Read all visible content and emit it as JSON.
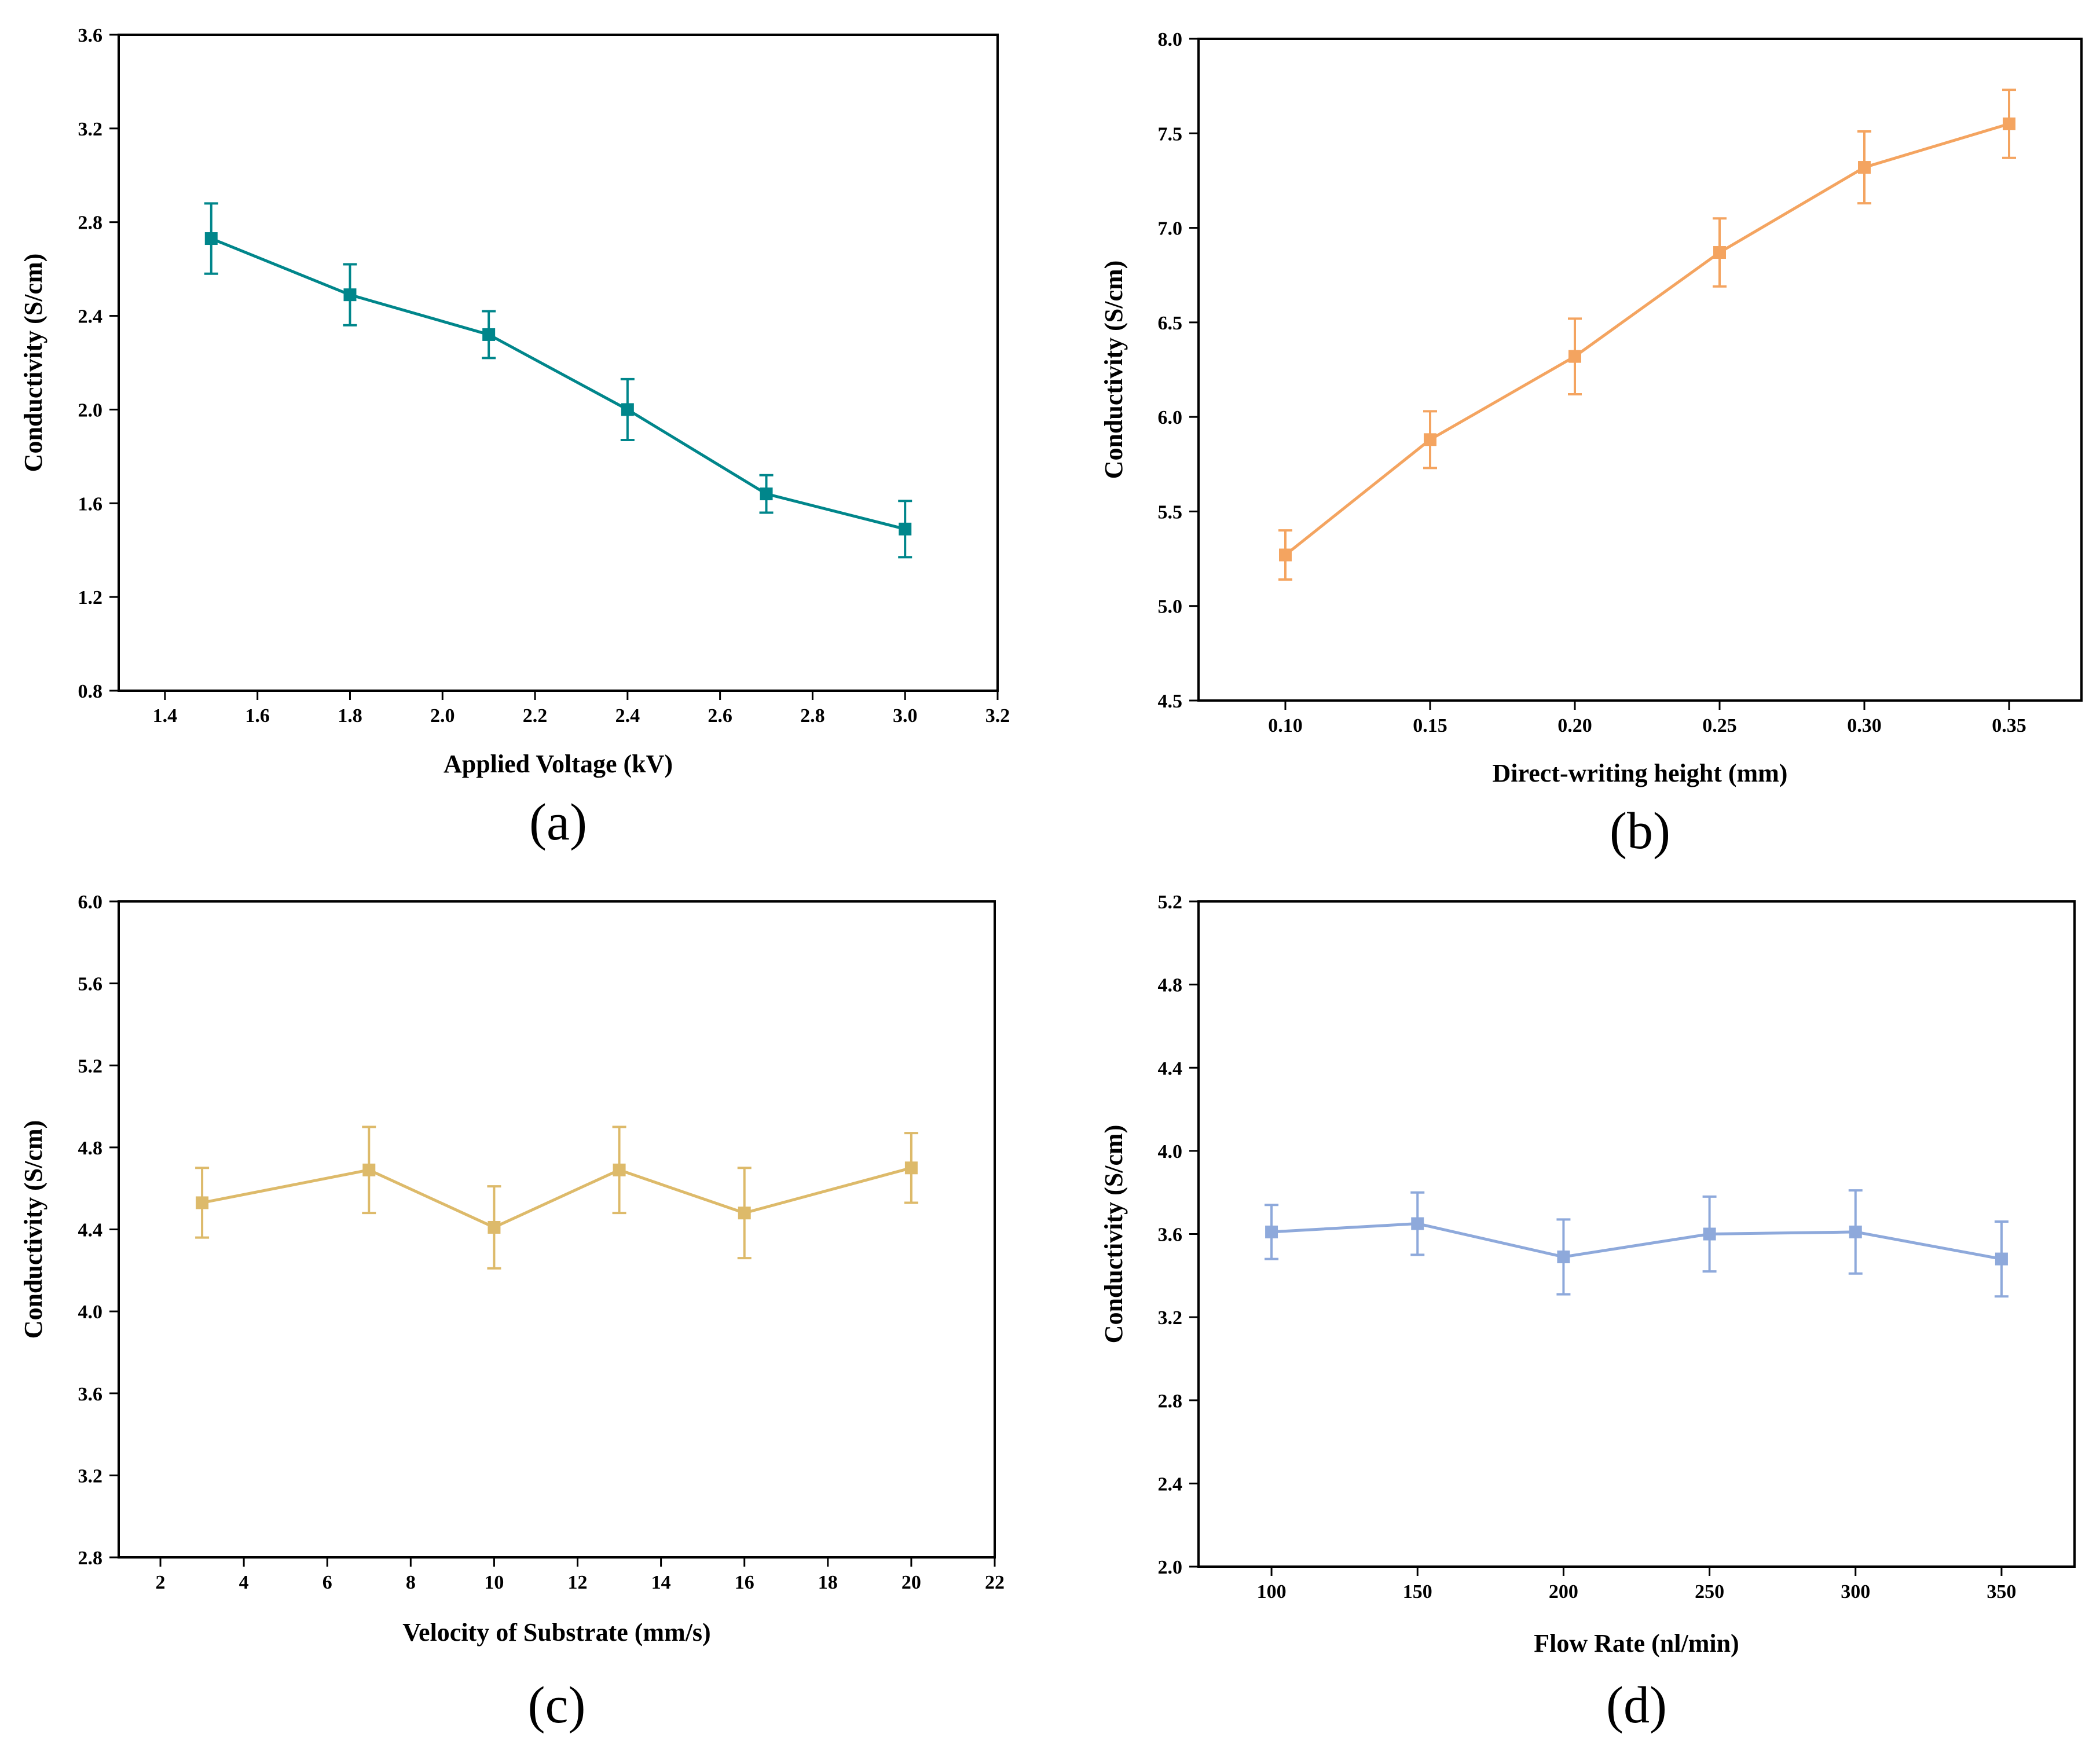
{
  "chart_data": [
    {
      "type": "line",
      "panel_label": "(a)",
      "xlabel": "Applied Voltage (kV)",
      "ylabel": "Conductivity (S/cm)",
      "xlim": [
        1.3,
        3.2
      ],
      "ylim": [
        0.8,
        3.6
      ],
      "xticks": [
        "1.4",
        "1.6",
        "1.8",
        "2.0",
        "2.2",
        "2.4",
        "2.6",
        "2.8",
        "3.0",
        "3.2"
      ],
      "yticks": [
        "0.8",
        "1.2",
        "1.6",
        "2.0",
        "2.4",
        "2.8",
        "3.2",
        "3.6"
      ],
      "color": "#00868B",
      "series": [
        {
          "name": "Conductivity",
          "x": [
            1.5,
            1.8,
            2.1,
            2.4,
            2.7,
            3.0
          ],
          "y": [
            2.73,
            2.49,
            2.32,
            2.0,
            1.64,
            1.49
          ],
          "err": [
            0.15,
            0.13,
            0.1,
            0.13,
            0.08,
            0.12
          ]
        }
      ]
    },
    {
      "type": "line",
      "panel_label": "(b)",
      "xlabel": "Direct-writing height (mm)",
      "ylabel": "Conductivity (S/cm)",
      "xlim": [
        0.07,
        0.375
      ],
      "ylim": [
        4.5,
        8.0
      ],
      "xticks": [
        "0.10",
        "0.15",
        "0.20",
        "0.25",
        "0.30",
        "0.35"
      ],
      "yticks": [
        "4.5",
        "5.0",
        "5.5",
        "6.0",
        "6.5",
        "7.0",
        "7.5",
        "8.0"
      ],
      "color": "#F4A460",
      "series": [
        {
          "name": "Conductivity",
          "x": [
            0.1,
            0.15,
            0.2,
            0.25,
            0.3,
            0.35
          ],
          "y": [
            5.27,
            5.88,
            6.32,
            6.87,
            7.32,
            7.55
          ],
          "err": [
            0.13,
            0.15,
            0.2,
            0.18,
            0.19,
            0.18
          ]
        }
      ]
    },
    {
      "type": "line",
      "panel_label": "(c)",
      "xlabel": "Velocity of Substrate (mm/s)",
      "ylabel": "Conductivity (S/cm)",
      "xlim": [
        1,
        22
      ],
      "ylim": [
        2.8,
        6.0
      ],
      "xticks": [
        "2",
        "4",
        "6",
        "8",
        "10",
        "12",
        "14",
        "16",
        "18",
        "20",
        "22"
      ],
      "yticks": [
        "2.8",
        "3.2",
        "3.6",
        "4.0",
        "4.4",
        "4.8",
        "5.2",
        "5.6",
        "6.0"
      ],
      "color": "#DDBA6A",
      "series": [
        {
          "name": "Conductivity",
          "x": [
            3,
            7,
            10,
            13,
            16,
            20
          ],
          "y": [
            4.53,
            4.69,
            4.41,
            4.69,
            4.48,
            4.7
          ],
          "err": [
            0.17,
            0.21,
            0.2,
            0.21,
            0.22,
            0.17
          ]
        }
      ]
    },
    {
      "type": "line",
      "panel_label": "(d)",
      "xlabel": "Flow Rate (nl/min)",
      "ylabel": "Conductivity (S/cm)",
      "xlim": [
        75,
        375
      ],
      "ylim": [
        2.0,
        5.2
      ],
      "xticks": [
        "100",
        "150",
        "200",
        "250",
        "300",
        "350"
      ],
      "yticks": [
        "2.0",
        "2.4",
        "2.8",
        "3.2",
        "3.6",
        "4.0",
        "4.4",
        "4.8",
        "5.2"
      ],
      "color": "#8EA9DB",
      "series": [
        {
          "name": "Conductivity",
          "x": [
            100,
            150,
            200,
            250,
            300,
            350
          ],
          "y": [
            3.61,
            3.65,
            3.49,
            3.6,
            3.61,
            3.48
          ],
          "err": [
            0.13,
            0.15,
            0.18,
            0.18,
            0.2,
            0.18
          ]
        }
      ]
    }
  ]
}
